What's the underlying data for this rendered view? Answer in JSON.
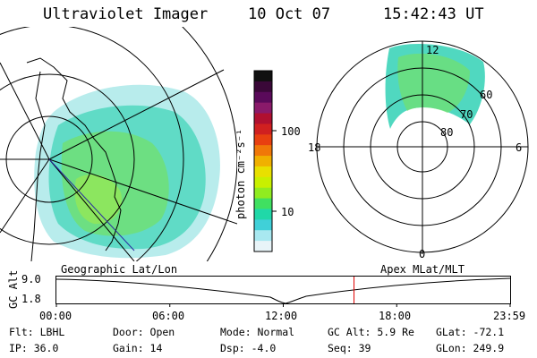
{
  "header": {
    "instrument": "Ultraviolet Imager",
    "date": "10 Oct 07",
    "time": "15:42:43 UT"
  },
  "colorbar": {
    "unit_label": "photon cm⁻²s⁻¹",
    "ticks": [
      "100",
      "10"
    ],
    "colors": [
      "#101010",
      "#3a0838",
      "#5a0a5a",
      "#8a1a6a",
      "#b01030",
      "#d02020",
      "#e84010",
      "#f07808",
      "#f0b000",
      "#e8e000",
      "#c8f000",
      "#90ec20",
      "#40e060",
      "#20d8a8",
      "#40d0d8",
      "#a8e8f0",
      "#e8f4f8"
    ]
  },
  "polar": {
    "labels": {
      "noon": "12",
      "dusk": "18",
      "dawn": "6",
      "midnight": "0"
    },
    "lat_labels": [
      "60",
      "70",
      "80"
    ]
  },
  "timeline": {
    "left_label": "Geographic Lat/Lon",
    "right_label": "Apex MLat/MLT",
    "yaxis_label": "GC Alt",
    "y_top": "9.0",
    "y_bottom": "1.8",
    "x_ticks": [
      "00:00",
      "06:00",
      "12:00",
      "18:00",
      "23:59"
    ],
    "marker_time_hours": 15.71,
    "marker_color": "#e00000"
  },
  "info": {
    "flt": "Flt: LBHL",
    "ip": "IP: 36.0",
    "door": "Door: Open",
    "gain": "Gain: 14",
    "mode": "Mode: Normal",
    "dsp": "Dsp:   -4.0",
    "gcalt": "GC Alt: 5.9 Re",
    "seq": "Seq: 39",
    "glat": "GLat: -72.1",
    "glon": "GLon: 249.9"
  }
}
